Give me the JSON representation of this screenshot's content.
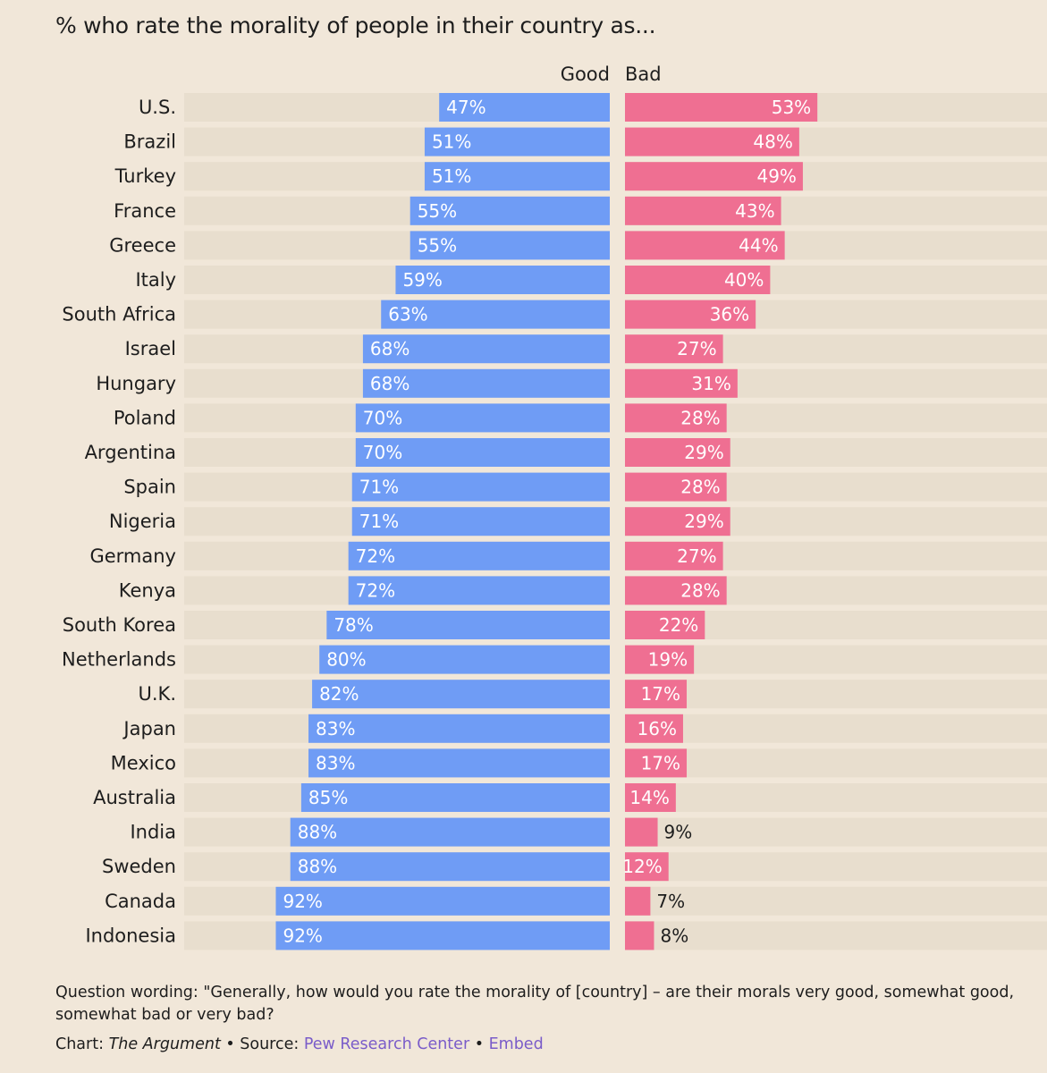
{
  "title": "% who rate the morality of people in their country as...",
  "chart_data": {
    "type": "bar",
    "orientation": "horizontal-diverging",
    "categories": [
      "U.S.",
      "Brazil",
      "Turkey",
      "France",
      "Greece",
      "Italy",
      "South Africa",
      "Israel",
      "Hungary",
      "Poland",
      "Argentina",
      "Spain",
      "Nigeria",
      "Germany",
      "Kenya",
      "South Korea",
      "Netherlands",
      "U.K.",
      "Japan",
      "Mexico",
      "Australia",
      "India",
      "Sweden",
      "Canada",
      "Indonesia"
    ],
    "series": [
      {
        "name": "Good",
        "color": "#6f9cf5",
        "values": [
          47,
          51,
          51,
          55,
          55,
          59,
          63,
          68,
          68,
          70,
          70,
          71,
          71,
          72,
          72,
          78,
          80,
          82,
          83,
          83,
          85,
          88,
          88,
          92,
          92
        ]
      },
      {
        "name": "Bad",
        "color": "#ef6f92",
        "values": [
          53,
          48,
          49,
          43,
          44,
          40,
          36,
          27,
          31,
          28,
          29,
          28,
          29,
          27,
          28,
          22,
          19,
          17,
          16,
          17,
          14,
          9,
          12,
          7,
          8
        ]
      }
    ],
    "value_suffix": "%",
    "xlim": [
      0,
      100
    ],
    "track_color": "#e8dece"
  },
  "footer": {
    "question": "Question wording: \"Generally, how would you rate the morality of [country] – are their morals very good, somewhat good, somewhat bad or very bad?",
    "chart_prefix": "Chart: ",
    "chart_by": "The Argument",
    "sep1": " • Source: ",
    "source": "Pew Research Center",
    "sep2": " • ",
    "embed": "Embed"
  }
}
